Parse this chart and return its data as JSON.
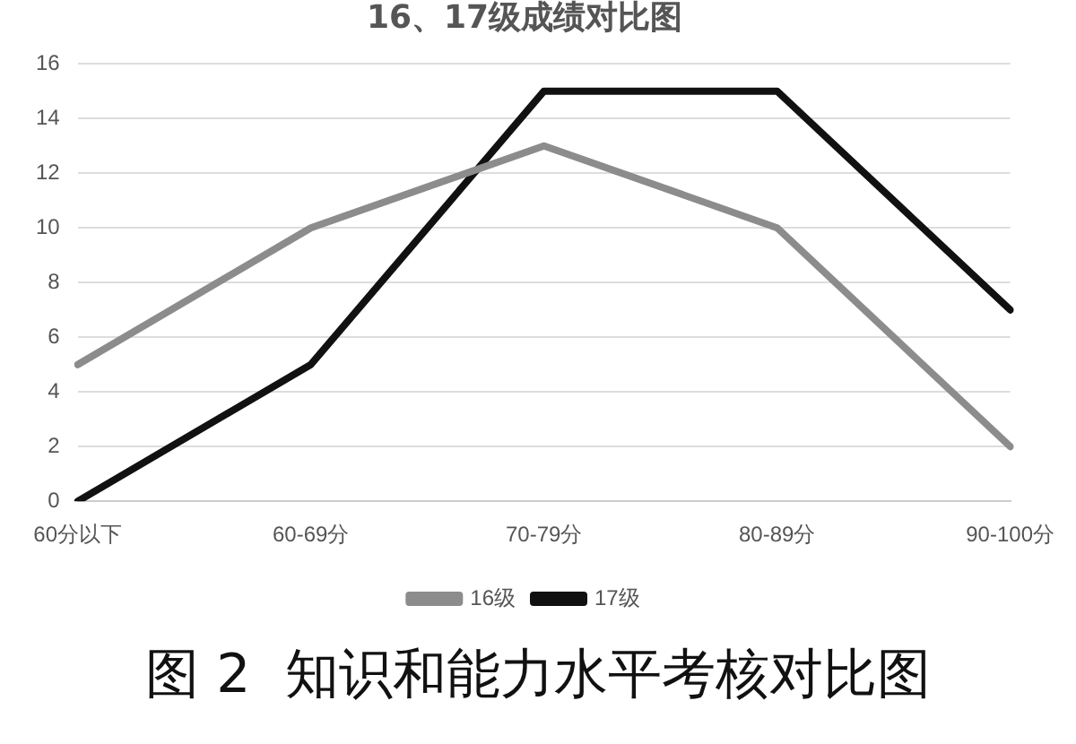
{
  "chart_data": {
    "type": "line",
    "title": "16、17级成绩对比图",
    "categories": [
      "60分以下",
      "60-69分",
      "70-79分",
      "80-89分",
      "90-100分"
    ],
    "series": [
      {
        "name": "16级",
        "color": "#8c8c8c",
        "values": [
          5,
          10,
          13,
          10,
          2
        ]
      },
      {
        "name": "17级",
        "color": "#111111",
        "values": [
          0,
          5,
          15,
          15,
          7
        ]
      }
    ],
    "ylim": [
      0,
      16
    ],
    "yticks": [
      0,
      2,
      4,
      6,
      8,
      10,
      12,
      14,
      16
    ],
    "grid": "y",
    "legend": "bottom",
    "marker": "none",
    "line_style": "solid",
    "annotations": [
      "图 2  知识和能力水平考核对比图"
    ]
  }
}
